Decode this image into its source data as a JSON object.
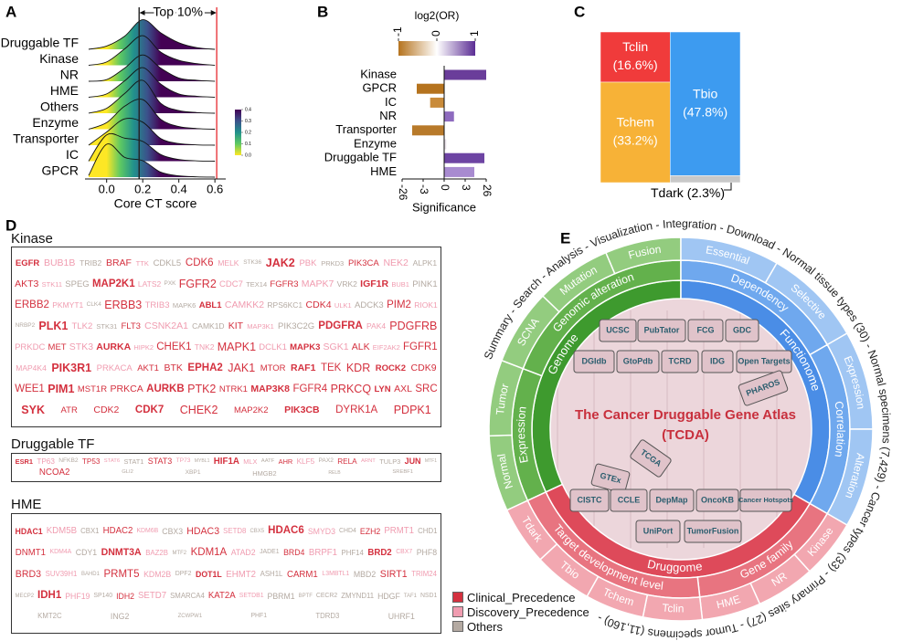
{
  "panel_labels": [
    "A",
    "B",
    "C",
    "D",
    "E"
  ],
  "chart_data": [
    {
      "type": "ridgeline",
      "xlabel": "Core CT score",
      "annotation": "Top 10%",
      "x": [
        -0.1,
        0,
        0.1,
        0.2,
        0.3,
        0.4,
        0.5,
        0.6
      ],
      "xlim": [
        -0.12,
        0.66
      ],
      "xticks": [
        {
          "value": 0,
          "label": "0.0"
        },
        {
          "value": 0.2,
          "label": "0.2"
        },
        {
          "value": 0.4,
          "label": "0.4"
        },
        {
          "value": 0.6,
          "label": "0.6"
        }
      ],
      "reference_lines": [
        {
          "value": 0.18,
          "color": "#222222"
        },
        {
          "value": 0.61,
          "color": "#e8383d"
        }
      ],
      "series": [
        {
          "name": "Druggable TF",
          "values": [
            0,
            0.1,
            0.4,
            0.9,
            0.5,
            0.2,
            0.05,
            0
          ]
        },
        {
          "name": "Kinase",
          "values": [
            0,
            0.1,
            0.5,
            0.9,
            0.4,
            0.15,
            0.05,
            0
          ]
        },
        {
          "name": "NR",
          "values": [
            0,
            0.05,
            0.4,
            0.8,
            0.4,
            0.1,
            0.03,
            0
          ]
        },
        {
          "name": "HME",
          "values": [
            0,
            0.1,
            0.5,
            0.9,
            0.4,
            0.1,
            0.03,
            0
          ]
        },
        {
          "name": "Others",
          "values": [
            0,
            0.15,
            0.6,
            1.0,
            0.3,
            0.08,
            0.02,
            0
          ]
        },
        {
          "name": "Enzyme",
          "values": [
            0,
            0.2,
            0.7,
            0.9,
            0.3,
            0.08,
            0.02,
            0
          ]
        },
        {
          "name": "Transporter",
          "values": [
            0,
            0.4,
            0.8,
            0.7,
            0.2,
            0.05,
            0.01,
            0
          ]
        },
        {
          "name": "IC",
          "values": [
            0,
            0.8,
            0.7,
            0.6,
            0.2,
            0.05,
            0.01,
            0
          ]
        },
        {
          "name": "GPCR",
          "values": [
            0.05,
            1.0,
            0.6,
            0.5,
            0.15,
            0.04,
            0.01,
            0
          ]
        }
      ],
      "colormap": [
        "#fde725",
        "#5ec962",
        "#21918c",
        "#3b528b",
        "#440154"
      ],
      "clim": [
        0,
        0.4
      ],
      "cticks": [
        {
          "value": 0,
          "label": "0.0"
        },
        0.1,
        0.2,
        0.3,
        0.4
      ]
    },
    {
      "type": "bar",
      "orientation": "horizontal",
      "xlabel": "Significance",
      "colorbar_title": "log2(OR)",
      "categories": [
        "Kinase",
        "GPCR",
        "IC",
        "NR",
        "Transporter",
        "Enzyme",
        "Druggable TF",
        "HME"
      ],
      "values": [
        26,
        -10,
        -2,
        1.4,
        -15,
        0.3,
        24,
        13
      ],
      "colors": [
        "#6a3d9a",
        "#b5731e",
        "#c98b3a",
        "#8e6bbf",
        "#b87a2a",
        "#e8e0e8",
        "#6d44a3",
        "#a88bd0"
      ],
      "xlim": [
        -26,
        26
      ],
      "xticks": [
        -26,
        -3,
        0,
        3,
        26
      ],
      "colormap": [
        "#b5731e",
        "#ffffff",
        "#5b2d94"
      ],
      "clim": [
        -1,
        1
      ],
      "cticks": [
        -1,
        0,
        1
      ]
    },
    {
      "type": "treemap",
      "categories": [
        "Tclin",
        "Tchem",
        "Tbio",
        "Tdark"
      ],
      "values": [
        16.6,
        33.2,
        47.8,
        2.3
      ],
      "value_labels": [
        "(16.6%)",
        "(33.2%)",
        "(47.8%)",
        "(2.3%)"
      ],
      "colors": [
        "#f03b3b",
        "#f7b237",
        "#3d9bf0",
        "#c8c8c8"
      ]
    }
  ],
  "word_clouds": [
    {
      "title": "Kinase",
      "groups": [
        [
          "EGFR",
          "BRAF",
          "CDK6",
          "JAK2",
          "PIK3CA",
          "AKT3",
          "MAP2K1",
          "FGFR2",
          "FGFR3",
          "IGF1R",
          "ERBB2",
          "ERBB3",
          "ABL1",
          "CDK4",
          "PIM2",
          "PLK1",
          "FLT3",
          "KIT",
          "PDGFRA",
          "PDGFRB",
          "MET",
          "AURKA",
          "CHEK1",
          "MAPK1",
          "MAPK3",
          "ALK",
          "FGFR1",
          "PIK3R1",
          "AKT1",
          "BTK",
          "EPHA2",
          "JAK1",
          "MTOR",
          "RAF1",
          "TEK",
          "KDR",
          "ROCK2",
          "CDK9",
          "WEE1",
          "PIM1",
          "MST1R",
          "PRKCA",
          "AURKB",
          "PTK2",
          "NTRK1",
          "MAP3K8",
          "FGFR4",
          "PRKCQ",
          "LYN",
          "AXL",
          "SRC",
          "SYK",
          "ATR",
          "CDK2",
          "CDK7",
          "CHEK2",
          "MAP2K2",
          "PIK3CB",
          "DYRK1A",
          "PDPK1"
        ],
        [
          "BUB1B",
          "TTK",
          "MELK",
          "PBK",
          "NEK2",
          "STK11",
          "LATS2",
          "CDC7",
          "MAPK7",
          "BUB1",
          "PKMYT1",
          "TRIB3",
          "CAMKK2",
          "ULK1",
          "RIOK1",
          "TLK2",
          "CSNK2A1",
          "MAP3K1",
          "PAK4",
          "PRKDC",
          "STK3",
          "HIPK2",
          "TNK2",
          "DCLK1",
          "SGK1",
          "EIF2AK2",
          "MAP4K4",
          "PRKACA"
        ],
        [
          "TRIB2",
          "CDKL5",
          "STK36",
          "PRKD3",
          "ALPK1",
          "SPEG",
          "PXK",
          "TEX14",
          "VRK2",
          "PINK1",
          "CLK4",
          "MAPK6",
          "RPS6KC1",
          "ADCK3",
          "NRBP2",
          "STK31",
          "CAMK1D",
          "PIK3C2G"
        ]
      ]
    },
    {
      "title": "Druggable TF",
      "groups": [
        [
          "ESR1",
          "TP53",
          "STAT3",
          "HIF1A",
          "AHR",
          "RELA",
          "JUN",
          "NCOA2"
        ],
        [
          "TP63",
          "STAT6",
          "TP73",
          "MLX",
          "KLF5",
          "ARNT"
        ],
        [
          "NFKB2",
          "STAT1",
          "MYBL1",
          "AATF",
          "PAX2",
          "TULP3",
          "MTF1",
          "GLI2",
          "XBP1",
          "HMGB2",
          "RELB",
          "SREBF1"
        ]
      ]
    },
    {
      "title": "HME",
      "groups": [
        [
          "HDAC1",
          "HDAC2",
          "HDAC3",
          "HDAC6",
          "EZH2",
          "DNMT1",
          "DNMT3A",
          "KDM1A",
          "BRD4",
          "BRD2",
          "BRD3",
          "PRMT5",
          "DOT1L",
          "CARM1",
          "SIRT1",
          "IDH1",
          "IDH2",
          "KAT2A"
        ],
        [
          "KDM5B",
          "KDM6B",
          "SETD8",
          "SMYD3",
          "PRMT1",
          "KDM4A",
          "BAZ2B",
          "ATAD2",
          "BRPF1",
          "CBX7",
          "SUV39H1",
          "KDM2B",
          "EHMT2",
          "L3MBTL1",
          "TRIM24",
          "PHF19",
          "SETD7",
          "SETDB1"
        ],
        [
          "CBX1",
          "CBX3",
          "CBX5",
          "CHD4",
          "CHD1",
          "CDY1",
          "MTF2",
          "JADE1",
          "PHF14",
          "PHF8",
          "BAHD1",
          "DPF2",
          "ASH1L",
          "MBD2",
          "MECP2",
          "SP140",
          "SMARCA4",
          "PBRM1",
          "BPTF",
          "CECR2",
          "ZMYND11",
          "HDGF",
          "TAF1",
          "NSD1",
          "KMT2C",
          "ING2",
          "ZCWPW1",
          "PHF1",
          "TDRD3",
          "UHRF1"
        ]
      ]
    }
  ],
  "legend": [
    {
      "label": "Clinical_Precedence",
      "color": "#d4313f"
    },
    {
      "label": "Discovery_Precedence",
      "color": "#f09cb0"
    },
    {
      "label": "Others",
      "color": "#b4aaa2"
    }
  ],
  "atlas": {
    "title": "The Cancer Druggable Gene Atlas",
    "subtitle": "(TCDA)",
    "outer_text": "Summary - Search - Analysis - Visualization - Integration - Download - Normal tissue types (30) - Normal specimens (7,429) - Cancer types (33) - Primary sites (27) - Tumor specimens (11,160) -",
    "sections": [
      {
        "name": "Genome",
        "colors": [
          "#3e9a2e",
          "#63b14c",
          "#93cc7f"
        ],
        "groups": [
          {
            "label": "Expression",
            "items": [
              "Normal",
              "Tumor"
            ]
          },
          {
            "label": "Genomic alteration",
            "items": [
              "SCNA",
              "Mutation",
              "Fusion"
            ]
          }
        ]
      },
      {
        "name": "Functionome",
        "colors": [
          "#4a8de6",
          "#6fa8ee",
          "#a0c6f3"
        ],
        "groups": [
          {
            "label": "Dependency",
            "items": [
              "Essential",
              "Selective"
            ]
          },
          {
            "label": "Correlation",
            "items": [
              "Expression",
              "Alteration"
            ]
          }
        ]
      },
      {
        "name": "Druggome",
        "colors": [
          "#de4a5a",
          "#e87480",
          "#f2a7b0"
        ],
        "groups": [
          {
            "label": "Gene family",
            "items": [
              "Kinase",
              "NR",
              "HME"
            ]
          },
          {
            "label": "Target development level",
            "items": [
              "Tclin",
              "Tchem",
              "Tbio",
              "Tdark"
            ]
          }
        ]
      }
    ],
    "sources": [
      "UCSC",
      "PubTator",
      "FCG",
      "GDC",
      "DGIdb",
      "GtoPdb",
      "TCRD",
      "IDG",
      "Open Targets",
      "PHAROS",
      "TCGA",
      "GTEx",
      "CISTC",
      "CCLE",
      "DepMap",
      "OncoKB",
      "Cancer Hotspots",
      "UniPort",
      "TumorFusion"
    ]
  }
}
